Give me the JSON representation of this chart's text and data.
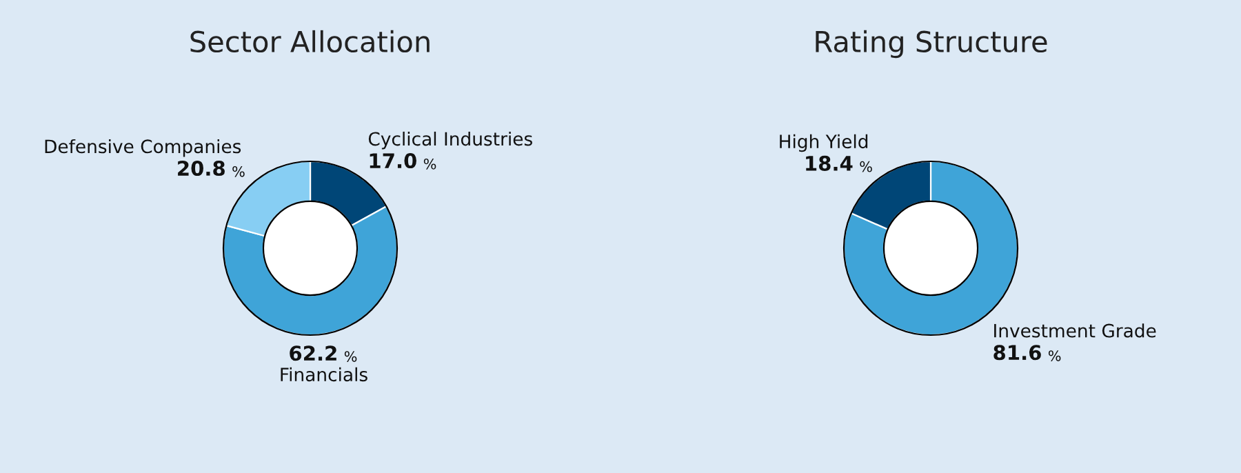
{
  "chart_data": [
    {
      "type": "donut",
      "title": "Sector Allocation",
      "categories": [
        "Cyclical Industries",
        "Financials",
        "Defensive Companies"
      ],
      "values": [
        17.0,
        62.2,
        20.8
      ],
      "colors": [
        "#004677",
        "#3fa4d8",
        "#87cef3"
      ],
      "value_labels": [
        "17.0 %",
        "62.2 %",
        "20.8 %"
      ]
    },
    {
      "type": "donut",
      "title": "Rating Structure",
      "categories": [
        "Investment Grade",
        "High Yield"
      ],
      "values": [
        81.6,
        18.4
      ],
      "colors": [
        "#3fa4d8",
        "#004677"
      ],
      "value_labels": [
        "81.6 %",
        "18.4 %"
      ]
    }
  ]
}
